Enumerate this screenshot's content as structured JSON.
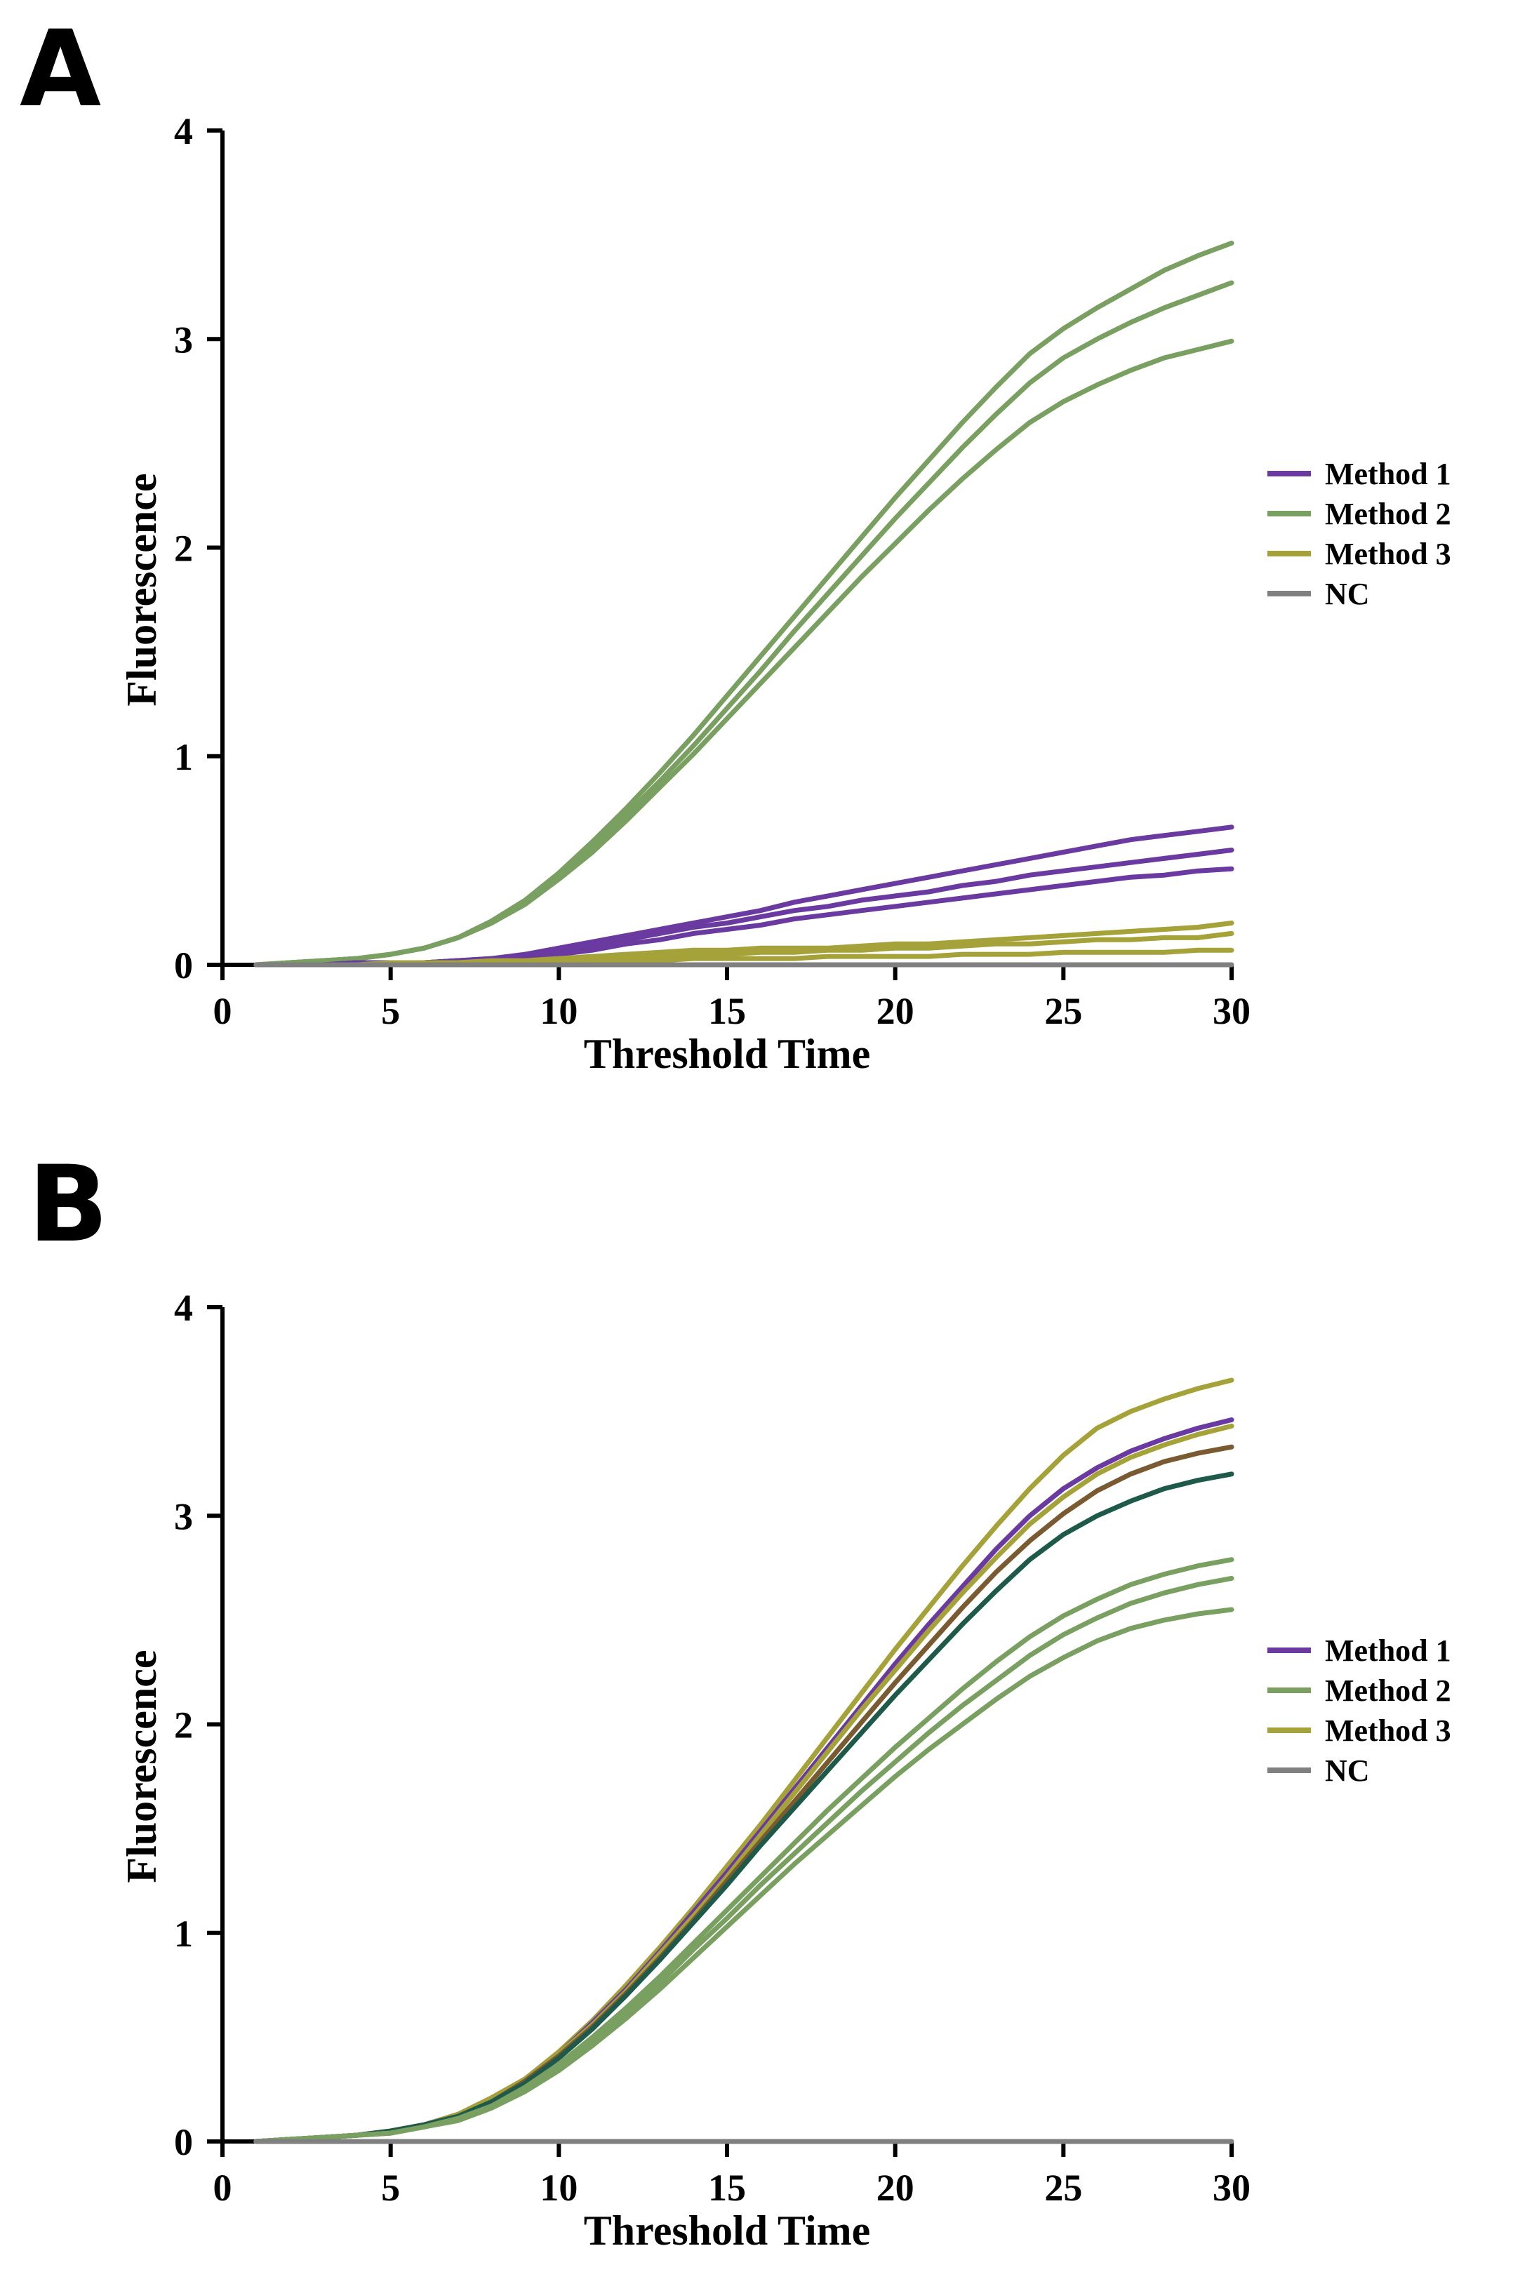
{
  "chart_data": [
    {
      "panel": "A",
      "type": "line",
      "xlabel": "Threshold Time",
      "ylabel": "Fluorescence",
      "xlim": [
        0,
        30
      ],
      "ylim": [
        0,
        4
      ],
      "xticks": [
        0,
        5,
        10,
        15,
        20,
        25,
        30
      ],
      "yticks": [
        0,
        1,
        2,
        3,
        4
      ],
      "legend_position": "right",
      "legend": [
        {
          "name": "Method 1",
          "color": "#6a3aa0"
        },
        {
          "name": "Method 2",
          "color": "#79a060"
        },
        {
          "name": "Method 3",
          "color": "#a6a23a"
        },
        {
          "name": "NC",
          "color": "#808080"
        }
      ],
      "x": [
        1,
        2,
        3,
        4,
        5,
        6,
        7,
        8,
        9,
        10,
        11,
        12,
        13,
        14,
        15,
        16,
        17,
        18,
        19,
        20,
        21,
        22,
        23,
        24,
        25,
        26,
        27,
        28,
        29,
        30
      ],
      "series": [
        {
          "name": "Method 2",
          "color": "#79a060",
          "values": [
            0.0,
            0.01,
            0.02,
            0.03,
            0.05,
            0.08,
            0.13,
            0.21,
            0.31,
            0.44,
            0.59,
            0.75,
            0.92,
            1.1,
            1.29,
            1.48,
            1.67,
            1.86,
            2.05,
            2.24,
            2.42,
            2.6,
            2.77,
            2.93,
            3.05,
            3.15,
            3.24,
            3.33,
            3.4,
            3.46
          ]
        },
        {
          "name": "Method 2",
          "color": "#79a060",
          "values": [
            0.0,
            0.01,
            0.02,
            0.03,
            0.05,
            0.08,
            0.13,
            0.2,
            0.3,
            0.42,
            0.56,
            0.72,
            0.88,
            1.05,
            1.23,
            1.41,
            1.6,
            1.78,
            1.96,
            2.14,
            2.31,
            2.48,
            2.64,
            2.79,
            2.91,
            3.0,
            3.08,
            3.15,
            3.21,
            3.27
          ]
        },
        {
          "name": "Method 2",
          "color": "#79a060",
          "values": [
            0.0,
            0.01,
            0.02,
            0.03,
            0.05,
            0.08,
            0.13,
            0.2,
            0.29,
            0.41,
            0.54,
            0.69,
            0.85,
            1.01,
            1.18,
            1.35,
            1.52,
            1.69,
            1.86,
            2.02,
            2.18,
            2.33,
            2.47,
            2.6,
            2.7,
            2.78,
            2.85,
            2.91,
            2.95,
            2.99
          ]
        },
        {
          "name": "Method 1",
          "color": "#6a3aa0",
          "values": [
            0.0,
            0.0,
            0.0,
            0.01,
            0.01,
            0.01,
            0.02,
            0.03,
            0.05,
            0.08,
            0.11,
            0.14,
            0.17,
            0.2,
            0.23,
            0.26,
            0.3,
            0.33,
            0.36,
            0.39,
            0.42,
            0.45,
            0.48,
            0.51,
            0.54,
            0.57,
            0.6,
            0.62,
            0.64,
            0.66
          ]
        },
        {
          "name": "Method 1",
          "color": "#6a3aa0",
          "values": [
            0.0,
            0.0,
            0.0,
            0.01,
            0.01,
            0.01,
            0.02,
            0.03,
            0.04,
            0.06,
            0.09,
            0.12,
            0.15,
            0.18,
            0.2,
            0.23,
            0.26,
            0.28,
            0.31,
            0.33,
            0.35,
            0.38,
            0.4,
            0.43,
            0.45,
            0.47,
            0.49,
            0.51,
            0.53,
            0.55
          ]
        },
        {
          "name": "Method 1",
          "color": "#6a3aa0",
          "values": [
            0.0,
            0.0,
            0.0,
            0.01,
            0.01,
            0.01,
            0.02,
            0.02,
            0.03,
            0.05,
            0.07,
            0.1,
            0.12,
            0.15,
            0.17,
            0.19,
            0.22,
            0.24,
            0.26,
            0.28,
            0.3,
            0.32,
            0.34,
            0.36,
            0.38,
            0.4,
            0.42,
            0.43,
            0.45,
            0.46
          ]
        },
        {
          "name": "Method 3",
          "color": "#a6a23a",
          "values": [
            0.0,
            0.0,
            0.0,
            0.0,
            0.01,
            0.01,
            0.01,
            0.02,
            0.02,
            0.03,
            0.04,
            0.05,
            0.06,
            0.07,
            0.07,
            0.08,
            0.08,
            0.08,
            0.09,
            0.1,
            0.1,
            0.11,
            0.12,
            0.13,
            0.14,
            0.15,
            0.16,
            0.17,
            0.18,
            0.2
          ]
        },
        {
          "name": "Method 3",
          "color": "#a6a23a",
          "values": [
            0.0,
            0.0,
            0.0,
            0.0,
            0.0,
            0.01,
            0.01,
            0.01,
            0.02,
            0.02,
            0.03,
            0.03,
            0.04,
            0.05,
            0.05,
            0.06,
            0.06,
            0.07,
            0.07,
            0.08,
            0.08,
            0.09,
            0.1,
            0.1,
            0.11,
            0.12,
            0.12,
            0.13,
            0.13,
            0.15
          ]
        },
        {
          "name": "Method 3",
          "color": "#a6a23a",
          "values": [
            0.0,
            0.0,
            0.0,
            0.0,
            0.0,
            0.0,
            0.01,
            0.01,
            0.01,
            0.01,
            0.02,
            0.02,
            0.02,
            0.03,
            0.03,
            0.03,
            0.03,
            0.04,
            0.04,
            0.04,
            0.04,
            0.05,
            0.05,
            0.05,
            0.06,
            0.06,
            0.06,
            0.06,
            0.07,
            0.07
          ]
        },
        {
          "name": "NC",
          "color": "#808080",
          "values": [
            0.0,
            0.0,
            0.0,
            0.0,
            0.0,
            0.0,
            0.0,
            0.0,
            0.0,
            0.0,
            0.0,
            0.0,
            0.0,
            0.0,
            0.0,
            0.0,
            0.0,
            0.0,
            0.0,
            0.0,
            0.0,
            0.0,
            0.0,
            0.0,
            0.0,
            0.0,
            0.0,
            0.0,
            0.0,
            0.0
          ]
        }
      ]
    },
    {
      "panel": "B",
      "type": "line",
      "xlabel": "Threshold Time",
      "ylabel": "Fluorescence",
      "xlim": [
        0,
        30
      ],
      "ylim": [
        0,
        4
      ],
      "xticks": [
        0,
        5,
        10,
        15,
        20,
        25,
        30
      ],
      "yticks": [
        0,
        1,
        2,
        3,
        4
      ],
      "legend_position": "right",
      "legend": [
        {
          "name": "Method 1",
          "color": "#6a3aa0"
        },
        {
          "name": "Method 2",
          "color": "#79a060"
        },
        {
          "name": "Method 3",
          "color": "#a6a23a"
        },
        {
          "name": "NC",
          "color": "#808080"
        }
      ],
      "x": [
        1,
        2,
        3,
        4,
        5,
        6,
        7,
        8,
        9,
        10,
        11,
        12,
        13,
        14,
        15,
        16,
        17,
        18,
        19,
        20,
        21,
        22,
        23,
        24,
        25,
        26,
        27,
        28,
        29,
        30
      ],
      "series": [
        {
          "name": "Method 3",
          "color": "#a6a23a",
          "values": [
            0.0,
            0.01,
            0.02,
            0.03,
            0.05,
            0.08,
            0.13,
            0.21,
            0.3,
            0.43,
            0.58,
            0.75,
            0.93,
            1.12,
            1.32,
            1.52,
            1.73,
            1.94,
            2.15,
            2.36,
            2.56,
            2.76,
            2.95,
            3.13,
            3.29,
            3.42,
            3.5,
            3.56,
            3.61,
            3.65
          ]
        },
        {
          "name": "Method 1",
          "color": "#6a3aa0",
          "values": [
            0.0,
            0.01,
            0.02,
            0.03,
            0.05,
            0.08,
            0.13,
            0.2,
            0.3,
            0.42,
            0.57,
            0.73,
            0.91,
            1.1,
            1.29,
            1.49,
            1.69,
            1.89,
            2.09,
            2.29,
            2.48,
            2.66,
            2.84,
            3.0,
            3.13,
            3.23,
            3.31,
            3.37,
            3.42,
            3.46
          ]
        },
        {
          "name": "Method 3",
          "color": "#a6a23a",
          "values": [
            0.0,
            0.01,
            0.02,
            0.03,
            0.05,
            0.08,
            0.13,
            0.2,
            0.3,
            0.42,
            0.56,
            0.72,
            0.9,
            1.08,
            1.27,
            1.47,
            1.67,
            1.87,
            2.07,
            2.26,
            2.45,
            2.63,
            2.8,
            2.96,
            3.09,
            3.2,
            3.28,
            3.34,
            3.39,
            3.43
          ]
        },
        {
          "name": "Method 1",
          "color": "#7a5a30",
          "values": [
            0.0,
            0.01,
            0.02,
            0.03,
            0.05,
            0.08,
            0.12,
            0.19,
            0.29,
            0.41,
            0.55,
            0.71,
            0.88,
            1.06,
            1.25,
            1.44,
            1.63,
            1.82,
            2.01,
            2.2,
            2.38,
            2.56,
            2.73,
            2.88,
            3.01,
            3.12,
            3.2,
            3.26,
            3.3,
            3.33
          ]
        },
        {
          "name": "Method 2",
          "color": "#1e5a4a",
          "values": [
            0.0,
            0.01,
            0.02,
            0.03,
            0.05,
            0.08,
            0.12,
            0.19,
            0.28,
            0.4,
            0.54,
            0.7,
            0.87,
            1.05,
            1.23,
            1.42,
            1.6,
            1.78,
            1.96,
            2.14,
            2.31,
            2.48,
            2.64,
            2.79,
            2.91,
            3.0,
            3.07,
            3.13,
            3.17,
            3.2
          ]
        },
        {
          "name": "Method 2",
          "color": "#79a060",
          "values": [
            0.0,
            0.01,
            0.02,
            0.03,
            0.04,
            0.07,
            0.11,
            0.17,
            0.26,
            0.37,
            0.5,
            0.64,
            0.79,
            0.95,
            1.11,
            1.27,
            1.43,
            1.59,
            1.74,
            1.89,
            2.03,
            2.17,
            2.3,
            2.42,
            2.52,
            2.6,
            2.67,
            2.72,
            2.76,
            2.79
          ]
        },
        {
          "name": "Method 2",
          "color": "#79a060",
          "values": [
            0.0,
            0.01,
            0.02,
            0.03,
            0.04,
            0.07,
            0.11,
            0.17,
            0.25,
            0.35,
            0.48,
            0.62,
            0.76,
            0.92,
            1.07,
            1.23,
            1.38,
            1.53,
            1.68,
            1.82,
            1.96,
            2.09,
            2.21,
            2.33,
            2.43,
            2.51,
            2.58,
            2.63,
            2.67,
            2.7
          ]
        },
        {
          "name": "Method 2",
          "color": "#79a060",
          "values": [
            0.0,
            0.01,
            0.02,
            0.03,
            0.04,
            0.07,
            0.1,
            0.16,
            0.24,
            0.34,
            0.46,
            0.59,
            0.73,
            0.88,
            1.03,
            1.18,
            1.33,
            1.47,
            1.61,
            1.75,
            1.88,
            2.0,
            2.12,
            2.23,
            2.32,
            2.4,
            2.46,
            2.5,
            2.53,
            2.55
          ]
        },
        {
          "name": "NC",
          "color": "#808080",
          "values": [
            0.0,
            0.0,
            0.0,
            0.0,
            0.0,
            0.0,
            0.0,
            0.0,
            0.0,
            0.0,
            0.0,
            0.0,
            0.0,
            0.0,
            0.0,
            0.0,
            0.0,
            0.0,
            0.0,
            0.0,
            0.0,
            0.0,
            0.0,
            0.0,
            0.0,
            0.0,
            0.0,
            0.0,
            0.0,
            0.0
          ]
        }
      ]
    }
  ]
}
